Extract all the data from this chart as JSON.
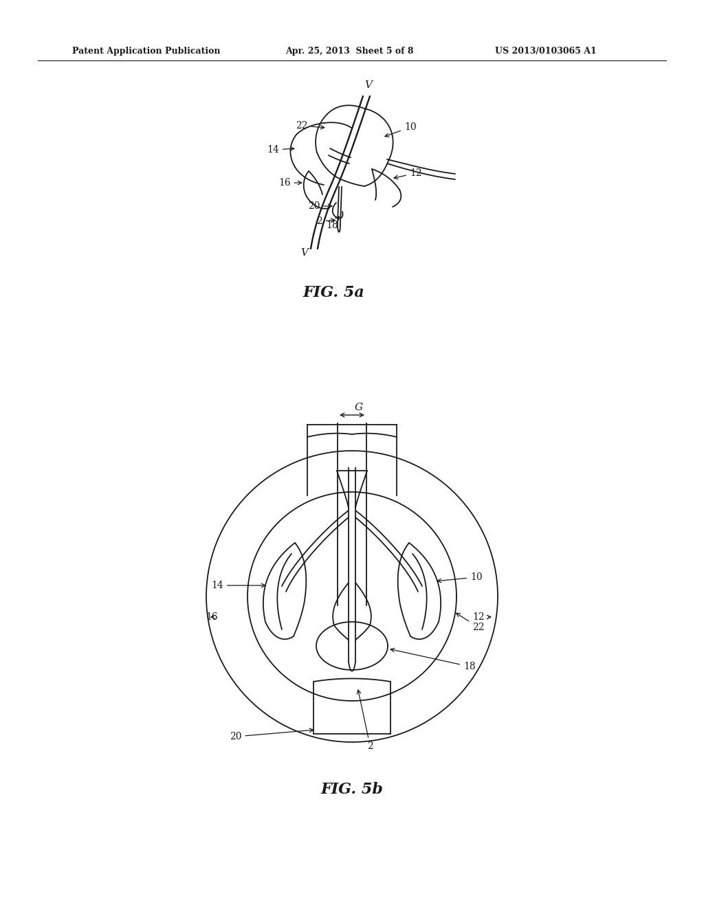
{
  "background_color": "#ffffff",
  "line_color": "#1a1a1a",
  "header_left": "Patent Application Publication",
  "header_center": "Apr. 25, 2013  Sheet 5 of 8",
  "header_right": "US 2013/0103065 A1",
  "fig5a_caption": "FIG. 5a",
  "fig5b_caption": "FIG. 5b"
}
